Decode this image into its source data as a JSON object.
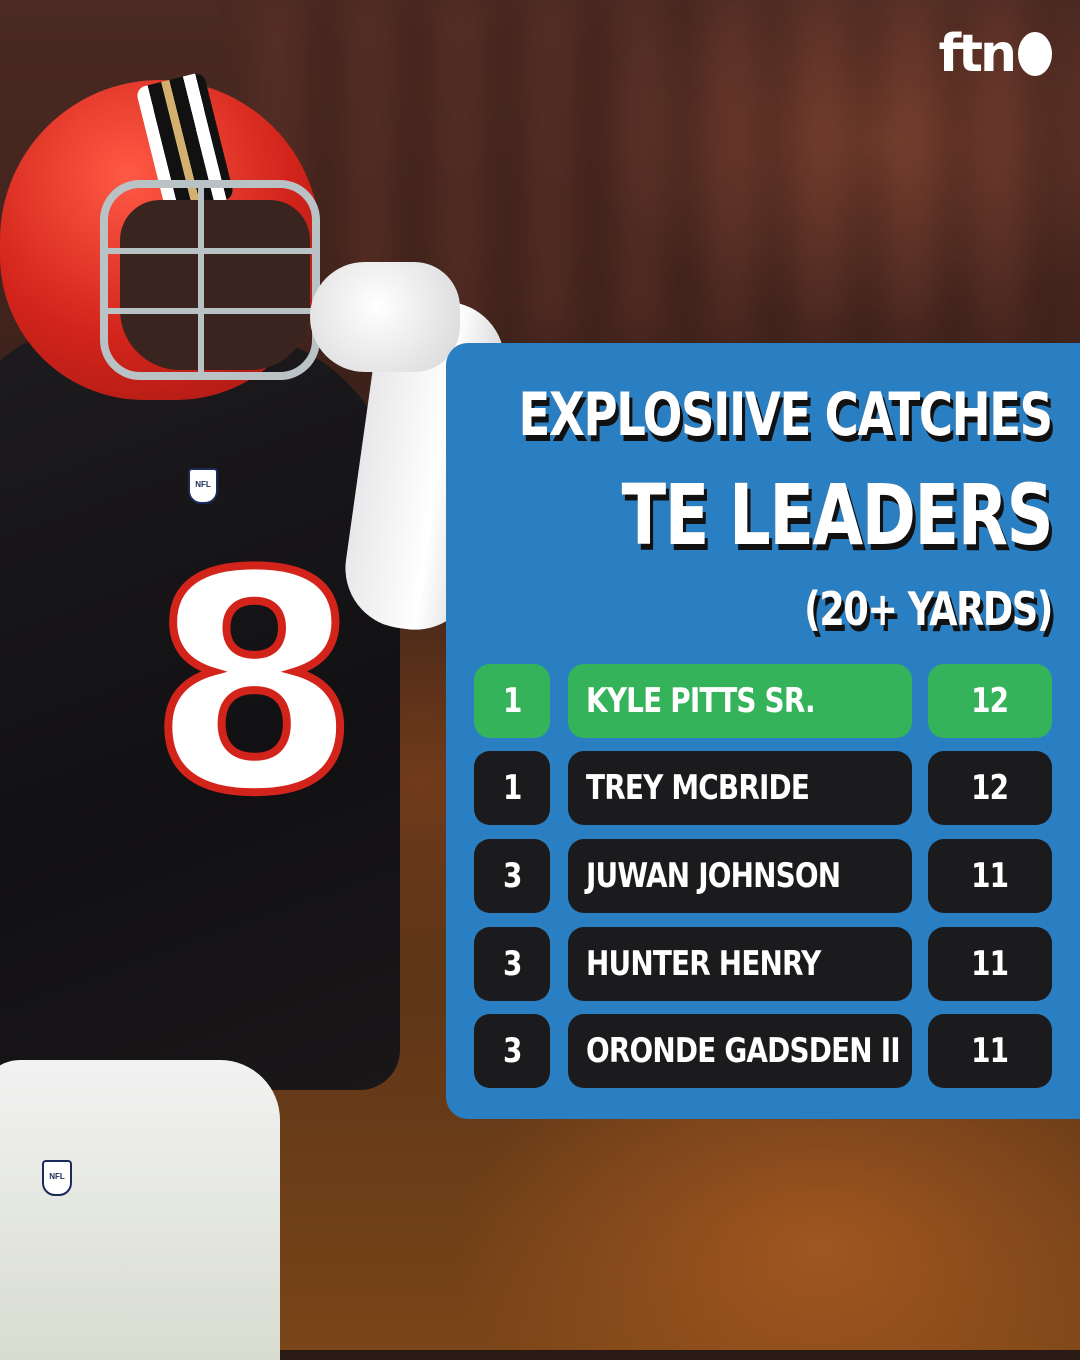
{
  "logo": {
    "text": "ftn"
  },
  "title": {
    "line1": "EXPLOSIIVE CATCHES",
    "line2": "TE LEADERS",
    "line3": "(20+ YARDS)"
  },
  "jersey_number": "8",
  "nfl_badge": "NFL",
  "colors": {
    "panel": "#2a7fc2",
    "leader_row": "#34b35a",
    "row": "#1b1b1d",
    "helmet_red": "#d2241b"
  },
  "leaders": [
    {
      "rank": "1",
      "name": "KYLE PITTS SR.",
      "count": "12",
      "highlight": true
    },
    {
      "rank": "1",
      "name": "TREY MCBRIDE",
      "count": "12",
      "highlight": false
    },
    {
      "rank": "3",
      "name": "JUWAN JOHNSON",
      "count": "11",
      "highlight": false
    },
    {
      "rank": "3",
      "name": "HUNTER HENRY",
      "count": "11",
      "highlight": false
    },
    {
      "rank": "3",
      "name": "ORONDE GADSDEN II",
      "count": "11",
      "highlight": false
    }
  ]
}
